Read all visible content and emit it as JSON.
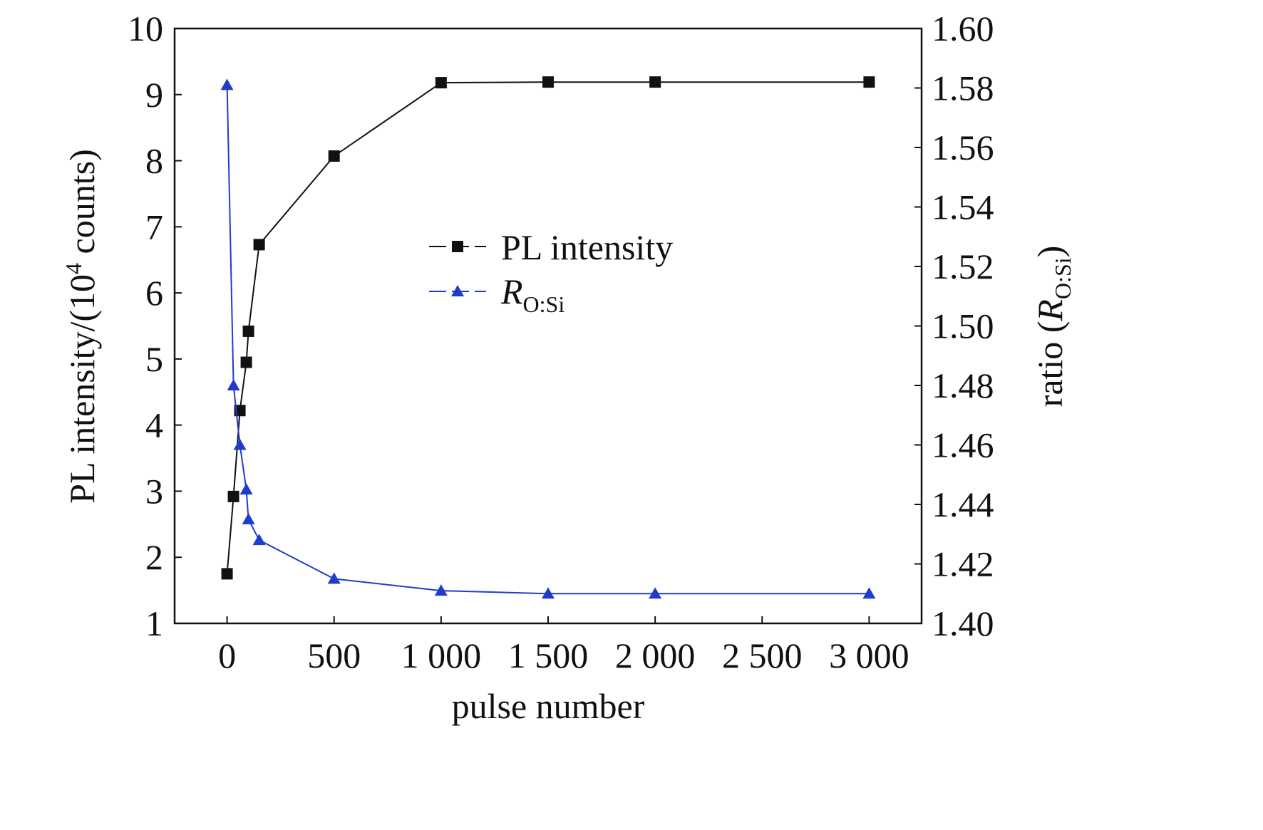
{
  "chart_data": {
    "type": "line",
    "xlabel": "pulse number",
    "ylabel_left": {
      "main": "PL intensity/(10",
      "sup": "4",
      "rest": " counts)"
    },
    "ylabel_right": {
      "main": "ratio (",
      "italic": "R",
      "sub": "O:Si",
      "rest": ")"
    },
    "x_ticks": [
      {
        "value": 0,
        "label": "0"
      },
      {
        "value": 500,
        "label": "500"
      },
      {
        "value": 1000,
        "label": "1 000"
      },
      {
        "value": 1500,
        "label": "1 500"
      },
      {
        "value": 2000,
        "label": "2 000"
      },
      {
        "value": 2500,
        "label": "2 500"
      },
      {
        "value": 3000,
        "label": "3 000"
      }
    ],
    "xlim": [
      -245,
      3245
    ],
    "y_left_ticks": [
      "1",
      "2",
      "3",
      "4",
      "5",
      "6",
      "7",
      "8",
      "9",
      "10"
    ],
    "ylim_left": [
      1,
      10
    ],
    "y_right_ticks": [
      "1.40",
      "1.42",
      "1.44",
      "1.46",
      "1.48",
      "1.50",
      "1.52",
      "1.54",
      "1.56",
      "1.58",
      "1.60"
    ],
    "ylim_right": [
      1.4,
      1.6
    ],
    "series": [
      {
        "name": "PL intensity",
        "axis": "left",
        "marker": "square",
        "color": "#111111",
        "x": [
          0,
          30,
          60,
          90,
          100,
          150,
          500,
          1000,
          1500,
          2000,
          3000
        ],
        "y": [
          1.75,
          2.92,
          4.22,
          4.95,
          5.42,
          6.73,
          8.07,
          9.18,
          9.19,
          9.19,
          9.19
        ]
      },
      {
        "name": "R",
        "name_sub": "O:Si",
        "axis": "right",
        "marker": "triangle",
        "color": "#1f3ccc",
        "x": [
          0,
          30,
          60,
          90,
          100,
          150,
          500,
          1000,
          1500,
          2000,
          3000
        ],
        "y": [
          1.581,
          1.48,
          1.46,
          1.445,
          1.435,
          1.428,
          1.415,
          1.411,
          1.41,
          1.41,
          1.41
        ]
      }
    ],
    "legend": {
      "position": "center"
    },
    "grid": false
  }
}
